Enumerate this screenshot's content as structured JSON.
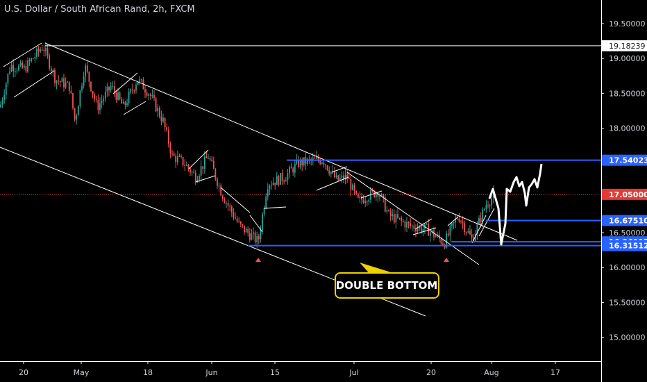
{
  "header": {
    "title": "U.S. Dollar / South African Rand, 2h, FXCM"
  },
  "chart_data": {
    "type": "candlestick",
    "title": "U.S. Dollar / South African Rand, 2h, FXCM",
    "ylim": [
      14.9,
      19.7
    ],
    "y_ticks": [
      "19.50000",
      "19.00000",
      "18.50000",
      "18.00000",
      "16.50000",
      "16.00000",
      "15.50000",
      "15.00000"
    ],
    "x_ticks": [
      "20",
      "May",
      "18",
      "Jun",
      "15",
      "Jul",
      "20",
      "Aug",
      "17"
    ],
    "price_labels": [
      {
        "label": "19.18239",
        "value": 19.18239,
        "style": "white"
      },
      {
        "label": "17.54023",
        "value": 17.54023,
        "style": "blue"
      },
      {
        "label": "17.05000",
        "value": 17.05,
        "style": "red"
      },
      {
        "label": "16.67510",
        "value": 16.6751,
        "style": "blue"
      },
      {
        "label": "16.36917",
        "value": 16.36917,
        "style": "blue"
      },
      {
        "label": "16.31512",
        "value": 16.31512,
        "style": "blue"
      }
    ],
    "annotation": "DOUBLE BOTTOM",
    "colors": {
      "up": "#26a69a",
      "down": "#ef5350",
      "level": "#2962ff",
      "callout": "#f0d000",
      "projection": "#ffffff"
    }
  }
}
